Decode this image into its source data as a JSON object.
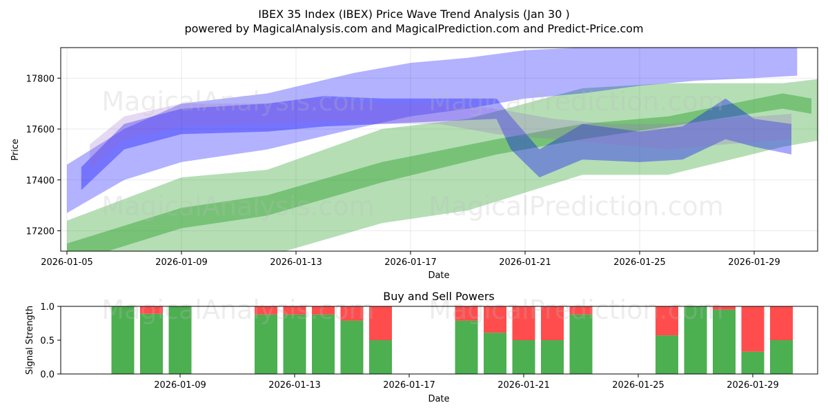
{
  "title_line1": "IBEX 35 Index (IBEX) Price Wave Trend Analysis (Jan 30 )",
  "title_line2": "powered by MagicalAnalysis.com and MagicalPrediction.com and Predict-Price.com",
  "watermarks": [
    "MagicalAnalysis.com",
    "MagicalPrediction.com"
  ],
  "chart_data": [
    {
      "type": "area",
      "title": "IBEX 35 Index (IBEX) Price Wave Trend Analysis (Jan 30 )",
      "xlabel": "Date",
      "ylabel": "Price",
      "xlim": [
        -0.2,
        26.5
      ],
      "ylim": [
        17120,
        17920
      ],
      "x_ticks": [
        {
          "day": 0,
          "label": "2026-01-05"
        },
        {
          "day": 4,
          "label": "2026-01-09"
        },
        {
          "day": 8,
          "label": "2026-01-13"
        },
        {
          "day": 12,
          "label": "2026-01-17"
        },
        {
          "day": 16,
          "label": "2026-01-21"
        },
        {
          "day": 20,
          "label": "2026-01-25"
        },
        {
          "day": 24,
          "label": "2026-01-29"
        }
      ],
      "y_ticks": [
        17200,
        17400,
        17600,
        17800
      ],
      "grid": true,
      "series": [
        {
          "name": "green-trend-inner",
          "color": "#2ca02c",
          "opacity": 0.45,
          "x": [
            0,
            4,
            7,
            11,
            15,
            18,
            21,
            25,
            26
          ],
          "lower": [
            17070,
            17210,
            17260,
            17390,
            17500,
            17560,
            17610,
            17680,
            17660
          ],
          "upper": [
            17150,
            17290,
            17340,
            17470,
            17560,
            17620,
            17650,
            17740,
            17720
          ]
        },
        {
          "name": "green-trend-outer",
          "color": "#2ca02c",
          "opacity": 0.35,
          "x": [
            0,
            4,
            7,
            11,
            14,
            18,
            21,
            25,
            26.5
          ],
          "lower": [
            16970,
            17060,
            17100,
            17230,
            17280,
            17420,
            17420,
            17530,
            17560
          ],
          "upper": [
            17240,
            17410,
            17440,
            17600,
            17640,
            17760,
            17780,
            17780,
            17800
          ]
        },
        {
          "name": "blue-wave-upper",
          "color": "#0000ff",
          "opacity": 0.3,
          "x": [
            0,
            2,
            4,
            7,
            10,
            12,
            14,
            16,
            18,
            20,
            22,
            24,
            25.5
          ],
          "lower": [
            17270,
            17400,
            17470,
            17520,
            17600,
            17650,
            17680,
            17720,
            17740,
            17770,
            17790,
            17800,
            17810
          ],
          "upper": [
            17460,
            17600,
            17700,
            17740,
            17820,
            17860,
            17880,
            17910,
            17920,
            17930,
            17930,
            17940,
            17950
          ]
        },
        {
          "name": "blue-wave-core",
          "color": "#0000ff",
          "opacity": 0.35,
          "x": [
            0.5,
            2,
            4,
            7,
            9,
            11,
            13,
            15,
            15.5,
            16.5,
            18,
            20,
            21.5,
            23,
            24,
            25.3
          ],
          "lower": [
            17360,
            17520,
            17580,
            17590,
            17610,
            17620,
            17630,
            17640,
            17520,
            17410,
            17480,
            17470,
            17480,
            17560,
            17530,
            17500
          ],
          "upper": [
            17450,
            17620,
            17680,
            17700,
            17730,
            17720,
            17720,
            17720,
            17650,
            17520,
            17620,
            17590,
            17610,
            17720,
            17640,
            17620
          ]
        },
        {
          "name": "purple-wave",
          "color": "#9966cc",
          "opacity": 0.25,
          "x": [
            0.8,
            2,
            4,
            7,
            9,
            11,
            13,
            15,
            17,
            19,
            21,
            23,
            25.3
          ],
          "lower": [
            17440,
            17560,
            17610,
            17620,
            17630,
            17620,
            17620,
            17580,
            17560,
            17540,
            17520,
            17540,
            17560
          ],
          "upper": [
            17540,
            17650,
            17700,
            17700,
            17720,
            17700,
            17700,
            17680,
            17640,
            17620,
            17620,
            17640,
            17660
          ]
        }
      ]
    },
    {
      "type": "bar",
      "title": "Buy and Sell Powers",
      "xlabel": "Date",
      "ylabel": "Signal Strength",
      "ylim": [
        0,
        1
      ],
      "y_ticks": [
        0.0,
        0.5,
        1.0
      ],
      "x_ticks": [
        {
          "day": 4,
          "label": "2026-01-09"
        },
        {
          "day": 8,
          "label": "2026-01-13"
        },
        {
          "day": 12,
          "label": "2026-01-17"
        },
        {
          "day": 16,
          "label": "2026-01-21"
        },
        {
          "day": 20,
          "label": "2026-01-25"
        },
        {
          "day": 24,
          "label": "2026-01-29"
        }
      ],
      "colors": {
        "buy": "#4caf50",
        "sell": "#ff4d4d"
      },
      "days": [
        2,
        3,
        4,
        7,
        8,
        9,
        10,
        11,
        14,
        15,
        16,
        17,
        18,
        21,
        22,
        23,
        24,
        25
      ],
      "series": [
        {
          "name": "Buy",
          "values": [
            1.0,
            0.89,
            1.0,
            0.88,
            0.88,
            0.88,
            0.79,
            0.5,
            0.79,
            0.61,
            0.5,
            0.5,
            0.88,
            0.57,
            1.0,
            0.95,
            0.33,
            0.5
          ]
        },
        {
          "name": "Sell",
          "values": [
            0.0,
            0.11,
            0.0,
            0.12,
            0.12,
            0.12,
            0.21,
            0.5,
            0.21,
            0.39,
            0.5,
            0.5,
            0.12,
            0.43,
            0.0,
            0.05,
            0.67,
            0.5
          ]
        }
      ]
    }
  ]
}
